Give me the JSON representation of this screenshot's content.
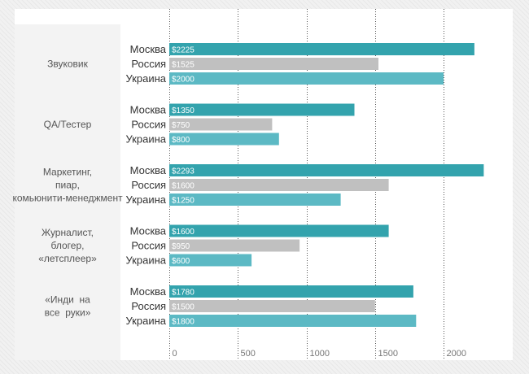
{
  "chart_data": {
    "type": "bar",
    "orientation": "horizontal",
    "categories": [
      "Звуковик",
      "QA/Тестер",
      "Маркетинг, пиар, комьюнити-менеджмент",
      "Журналист, блогер, «летсплеер»",
      "«Инди на все руки»"
    ],
    "category_lines": [
      [
        "Звуковик"
      ],
      [
        "QA/Тестер"
      ],
      [
        "Маркетинг,",
        "пиар,",
        "комьюнити-менеджмент"
      ],
      [
        "Журналист,",
        "блогер,",
        "«летсплеер»"
      ],
      [
        "«Инди  на",
        "все  руки»"
      ]
    ],
    "series": [
      {
        "name": "Москва",
        "values": [
          2225,
          1350,
          2293,
          1600,
          1780
        ],
        "labels": [
          "$2225",
          "$1350",
          "$2293",
          "$1600",
          "$1780"
        ]
      },
      {
        "name": "Россия",
        "values": [
          1525,
          750,
          1600,
          950,
          1500
        ],
        "labels": [
          "$1525",
          "$750",
          "$1600",
          "$950",
          "$1500"
        ]
      },
      {
        "name": "Украина",
        "values": [
          2000,
          800,
          1250,
          600,
          1800
        ],
        "labels": [
          "$2000",
          "$800",
          "$1250",
          "$600",
          "$1800"
        ]
      }
    ],
    "xlim": [
      0,
      2500
    ],
    "xticks": [
      0,
      500,
      1000,
      1500,
      2000
    ],
    "xtick_labels": [
      "0",
      "500",
      "1000",
      "1500",
      "2000"
    ],
    "grid": "vertical-dotted",
    "colors": {
      "Москва": "#33a3ad",
      "Россия": "#c0c0c0",
      "Украина": "#5cb9c4"
    }
  }
}
